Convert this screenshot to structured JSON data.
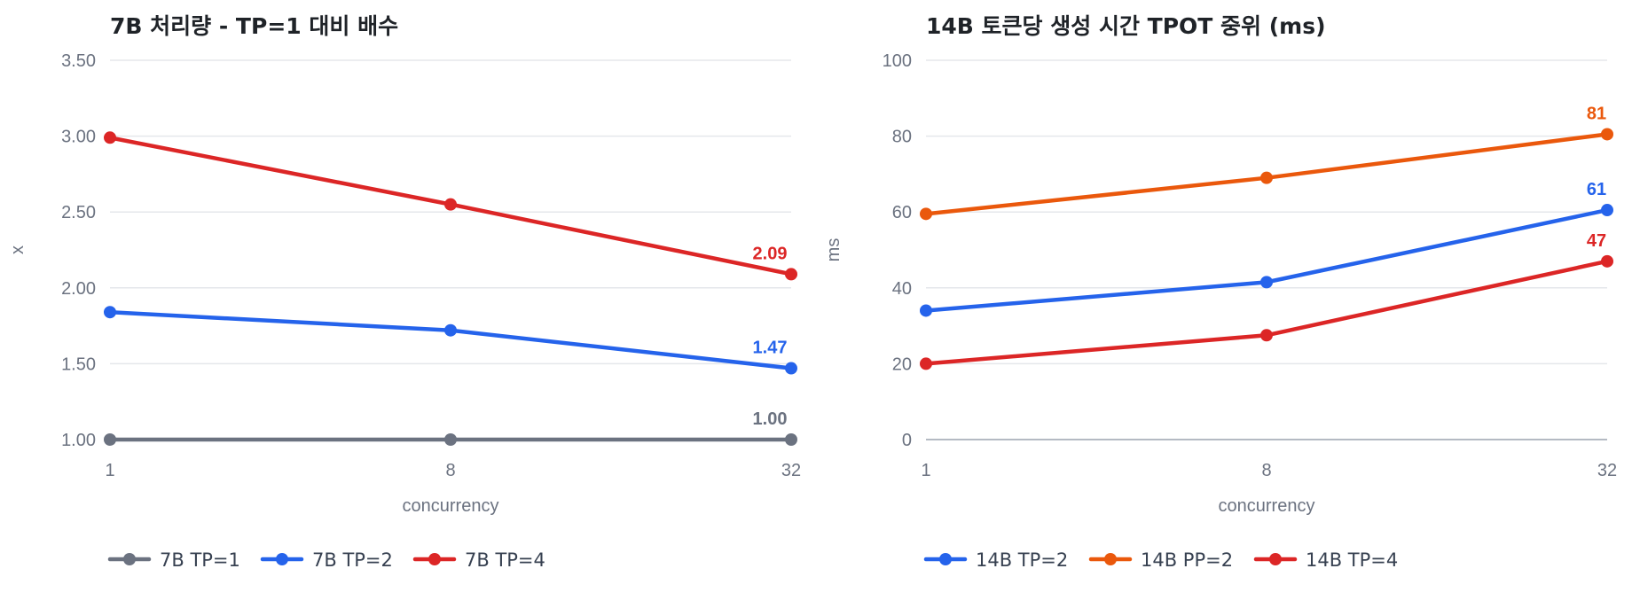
{
  "chart_data": [
    {
      "type": "line",
      "title": "7B 처리량 - TP=1 대비 배수",
      "xlabel": "concurrency",
      "ylabel": "x",
      "categories": [
        "1",
        "8",
        "32"
      ],
      "ylim": [
        1.0,
        3.5
      ],
      "yticks": [
        "1.00",
        "1.50",
        "2.00",
        "2.50",
        "3.00",
        "3.50"
      ],
      "ytick_values": [
        1.0,
        1.5,
        2.0,
        2.5,
        3.0,
        3.5
      ],
      "grid": true,
      "legend": "bottom",
      "series": [
        {
          "name": "7B TP=1",
          "color": "#6b7280",
          "values": [
            1.0,
            1.0,
            1.0
          ],
          "end_label": "1.00"
        },
        {
          "name": "7B TP=2",
          "color": "#2563eb",
          "values": [
            1.84,
            1.72,
            1.47
          ],
          "end_label": "1.47"
        },
        {
          "name": "7B TP=4",
          "color": "#dc2626",
          "values": [
            2.99,
            2.55,
            2.09
          ],
          "end_label": "2.09"
        }
      ]
    },
    {
      "type": "line",
      "title": "14B 토큰당 생성 시간 TPOT 중위 (ms)",
      "xlabel": "concurrency",
      "ylabel": "ms",
      "categories": [
        "1",
        "8",
        "32"
      ],
      "ylim": [
        0,
        100
      ],
      "yticks": [
        "0",
        "20",
        "40",
        "60",
        "80",
        "100"
      ],
      "ytick_values": [
        0,
        20,
        40,
        60,
        80,
        100
      ],
      "grid": true,
      "legend": "bottom",
      "series": [
        {
          "name": "14B TP=2",
          "color": "#2563eb",
          "values": [
            34,
            41.5,
            60.5
          ],
          "end_label": "61"
        },
        {
          "name": "14B PP=2",
          "color": "#ea580c",
          "values": [
            59.5,
            69,
            80.5
          ],
          "end_label": "81"
        },
        {
          "name": "14B TP=4",
          "color": "#dc2626",
          "values": [
            20,
            27.5,
            47
          ],
          "end_label": "47"
        }
      ]
    }
  ]
}
